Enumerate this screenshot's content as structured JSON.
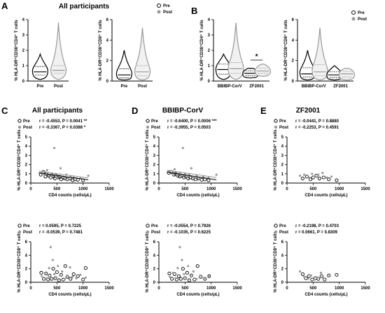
{
  "panels": {
    "A": {
      "label": "A",
      "title": "All participants"
    },
    "B": {
      "label": "B"
    },
    "C": {
      "label": "C",
      "title": "All participants"
    },
    "D": {
      "label": "D",
      "title": "BBIBP-CorV"
    },
    "E": {
      "label": "E",
      "title": "ZF2001"
    }
  },
  "legend": {
    "pre": "Pre",
    "post": "Post"
  },
  "axes": {
    "ylabel_cd4": "% HLA-DR⁺CD38⁺CD4⁺ T cells",
    "ylabel_cd8": "% HLA-DR⁺CD38⁺CD8⁺ T cells",
    "xlabel_scatter": "CD4 counts (cells/μL)"
  },
  "sig_marker": "*",
  "colors": {
    "pre": "#000000",
    "post": "#999999"
  },
  "chart_data": [
    {
      "id": "A-cd4",
      "type": "violin",
      "ylabel": "% HLA-DR⁺CD38⁺CD4⁺ T cells",
      "categories": [
        "Pre",
        "Post"
      ],
      "ylim": [
        0,
        4
      ],
      "yticks": [
        "0",
        "1",
        "2",
        "3",
        "4"
      ],
      "series": [
        {
          "name": "Pre",
          "median": 0.6,
          "q1": 0.4,
          "q3": 0.95,
          "min": 0.1,
          "max": 1.75
        },
        {
          "name": "Post",
          "median": 0.7,
          "q1": 0.5,
          "q3": 1.0,
          "min": 0.1,
          "max": 3.8
        }
      ]
    },
    {
      "id": "A-cd8",
      "type": "violin",
      "ylabel": "% HLA-DR⁺CD38⁺CD8⁺ T cells",
      "categories": [
        "Pre",
        "Post"
      ],
      "ylim": [
        0,
        6
      ],
      "yticks": [
        "0",
        "2",
        "4",
        "6"
      ],
      "series": [
        {
          "name": "Pre",
          "median": 0.6,
          "q1": 0.3,
          "q3": 1.2,
          "min": 0.1,
          "max": 3.0
        },
        {
          "name": "Post",
          "median": 0.9,
          "q1": 0.5,
          "q3": 1.5,
          "min": 0.1,
          "max": 5.2
        }
      ]
    },
    {
      "id": "B-cd4",
      "type": "violin",
      "ylabel": "% HLA-DR⁺CD38⁺CD4⁺ T cells",
      "categories": [
        "BBIBP-CorV",
        "ZF2001"
      ],
      "ylim": [
        0,
        4
      ],
      "yticks": [
        "0",
        "1",
        "2",
        "3",
        "4"
      ],
      "series": [
        {
          "name": "Pre",
          "group": "BBIBP-CorV",
          "median": 0.75,
          "q1": 0.45,
          "q3": 1.1,
          "min": 0.1,
          "max": 1.75
        },
        {
          "name": "Post",
          "group": "BBIBP-CorV",
          "median": 0.8,
          "q1": 0.5,
          "q3": 1.2,
          "min": 0.1,
          "max": 3.8
        },
        {
          "name": "Pre",
          "group": "ZF2001",
          "median": 0.5,
          "q1": 0.35,
          "q3": 0.65,
          "min": 0.2,
          "max": 0.8
        },
        {
          "name": "Post",
          "group": "ZF2001",
          "median": 0.65,
          "q1": 0.5,
          "q3": 0.85,
          "min": 0.3,
          "max": 1.1
        }
      ]
    },
    {
      "id": "B-cd8",
      "type": "violin",
      "ylabel": "% HLA-DR⁺CD38⁺CD8⁺ T cells",
      "categories": [
        "BBIBP-CorV",
        "ZF2001"
      ],
      "ylim": [
        0,
        6
      ],
      "yticks": [
        "0",
        "2",
        "4",
        "6"
      ],
      "series": [
        {
          "name": "Pre",
          "group": "BBIBP-CorV",
          "median": 0.7,
          "q1": 0.4,
          "q3": 1.3,
          "min": 0.1,
          "max": 3.0
        },
        {
          "name": "Post",
          "group": "BBIBP-CorV",
          "median": 0.9,
          "q1": 0.5,
          "q3": 1.6,
          "min": 0.1,
          "max": 5.2
        },
        {
          "name": "Pre",
          "group": "ZF2001",
          "median": 0.6,
          "q1": 0.35,
          "q3": 0.9,
          "min": 0.1,
          "max": 1.5
        },
        {
          "name": "Post",
          "group": "ZF2001",
          "median": 0.7,
          "q1": 0.4,
          "q3": 0.95,
          "min": 0.1,
          "max": 1.2
        }
      ]
    },
    {
      "id": "C-cd4",
      "type": "scatter",
      "ylabel": "% HLA-DR⁺CD38⁺CD4⁺ T cells",
      "xlabel": "CD4 counts (cells/μL)",
      "xlim": [
        0,
        1500
      ],
      "ylim": [
        0,
        5
      ],
      "xticks": [
        "0",
        "500",
        "1000",
        "1500"
      ],
      "yticks": [
        "0",
        "1",
        "2",
        "3",
        "4",
        "5"
      ],
      "stats": [
        {
          "name": "Pre",
          "text": "r = -0.4553, P = 0.0041 **"
        },
        {
          "name": "Post",
          "text": "r = -0.3367, P = 0.0388 *"
        }
      ],
      "fit_lines": [
        {
          "name": "Pre",
          "x": [
            150,
            1100
          ],
          "y": [
            1.1,
            0.35
          ]
        },
        {
          "name": "Post",
          "x": [
            150,
            1100
          ],
          "y": [
            1.3,
            0.55
          ]
        }
      ],
      "series": [
        {
          "name": "Pre",
          "x": [
            190,
            240,
            280,
            300,
            340,
            380,
            400,
            430,
            460,
            480,
            520,
            550,
            580,
            620,
            650,
            700,
            750,
            800,
            850,
            900,
            1000
          ],
          "y": [
            0.9,
            1.2,
            0.7,
            1.0,
            0.8,
            0.6,
            0.9,
            0.7,
            0.5,
            0.8,
            0.6,
            0.7,
            0.4,
            0.6,
            0.5,
            0.4,
            0.5,
            0.3,
            0.4,
            0.35,
            0.3
          ]
        },
        {
          "name": "Post",
          "x": [
            200,
            260,
            310,
            350,
            390,
            420,
            450,
            470,
            500,
            540,
            570,
            600,
            640,
            680,
            720,
            760,
            820,
            880,
            950,
            1100
          ],
          "y": [
            1.1,
            0.9,
            1.4,
            0.8,
            1.0,
            0.7,
            3.8,
            0.9,
            0.6,
            0.8,
            1.6,
            0.7,
            0.6,
            0.9,
            0.5,
            0.7,
            0.6,
            0.5,
            0.55,
            0.8
          ]
        }
      ]
    },
    {
      "id": "C-cd8",
      "type": "scatter",
      "ylabel": "% HLA-DR⁺CD38⁺CD8⁺ T cells",
      "xlabel": "CD4 counts (cells/μL)",
      "xlim": [
        0,
        1500
      ],
      "ylim": [
        0,
        6
      ],
      "xticks": [
        "0",
        "500",
        "1000",
        "1500"
      ],
      "yticks": [
        "0",
        "2",
        "4",
        "6"
      ],
      "stats": [
        {
          "name": "Pre",
          "text": "r = 0.0595, P = 0.7225"
        },
        {
          "name": "Post",
          "text": "r = -0.0539, P = 0.7481"
        }
      ],
      "series": [
        {
          "name": "Pre",
          "x": [
            200,
            250,
            290,
            330,
            360,
            400,
            430,
            470,
            500,
            540,
            580,
            620,
            660,
            700,
            760,
            820,
            900,
            1000,
            1050
          ],
          "y": [
            1.4,
            0.5,
            1.3,
            0.4,
            1.0,
            0.5,
            2.0,
            0.6,
            1.5,
            0.3,
            1.1,
            0.4,
            2.4,
            0.8,
            0.5,
            1.2,
            0.9,
            0.4,
            2.1
          ]
        },
        {
          "name": "Post",
          "x": [
            210,
            270,
            310,
            350,
            380,
            420,
            450,
            490,
            520,
            560,
            600,
            650,
            700,
            750,
            800,
            870,
            950,
            1050
          ],
          "y": [
            0.9,
            1.4,
            0.6,
            2.1,
            5.2,
            3.3,
            1.2,
            0.7,
            2.4,
            1.0,
            1.6,
            0.5,
            1.0,
            2.2,
            0.8,
            0.6,
            1.1,
            0.7
          ]
        }
      ]
    },
    {
      "id": "D-cd4",
      "type": "scatter",
      "ylabel": "% HLA-DR⁺CD38⁺CD4⁺ T cells",
      "xlabel": "CD4 counts (cells/μL)",
      "xlim": [
        0,
        1500
      ],
      "ylim": [
        0,
        5
      ],
      "xticks": [
        "0",
        "500",
        "1000",
        "1500"
      ],
      "yticks": [
        "0",
        "1",
        "2",
        "3",
        "4",
        "5"
      ],
      "stats": [
        {
          "name": "Pre",
          "text": "r = -0.6400, P = 0.0006 ***"
        },
        {
          "name": "Post",
          "text": "r = -0.3955, P = 0.0503"
        }
      ],
      "fit_lines": [
        {
          "name": "Pre",
          "x": [
            150,
            1100
          ],
          "y": [
            1.2,
            0.35
          ]
        },
        {
          "name": "Post",
          "x": [
            150,
            1100
          ],
          "y": [
            1.4,
            0.6
          ]
        }
      ],
      "series": [
        {
          "name": "Pre",
          "x": [
            190,
            240,
            290,
            320,
            360,
            400,
            440,
            480,
            520,
            560,
            600,
            650,
            700,
            760,
            820,
            880,
            950
          ],
          "y": [
            1.1,
            1.2,
            0.9,
            1.0,
            0.8,
            0.7,
            0.8,
            0.6,
            0.7,
            0.5,
            0.6,
            0.5,
            0.4,
            0.5,
            0.35,
            0.4,
            0.3
          ]
        },
        {
          "name": "Post",
          "x": [
            200,
            260,
            300,
            350,
            400,
            430,
            460,
            500,
            540,
            580,
            620,
            660,
            720,
            780,
            850,
            950,
            1100
          ],
          "y": [
            1.3,
            1.0,
            1.5,
            0.9,
            1.1,
            0.8,
            3.8,
            1.0,
            0.7,
            0.9,
            1.6,
            0.6,
            0.8,
            0.5,
            0.7,
            0.6,
            0.9
          ]
        }
      ]
    },
    {
      "id": "D-cd8",
      "type": "scatter",
      "ylabel": "% HLA-DR⁺CD38⁺CD8⁺ T cells",
      "xlabel": "CD4 counts (cells/μL)",
      "xlim": [
        0,
        1500
      ],
      "ylim": [
        0,
        6
      ],
      "xticks": [
        "0",
        "500",
        "1000",
        "1500"
      ],
      "yticks": [
        "0",
        "2",
        "4",
        "6"
      ],
      "stats": [
        {
          "name": "Pre",
          "text": "r = -0.0554, P = 0.7926"
        },
        {
          "name": "Post",
          "text": "r = -0.1035, P = 0.6225"
        }
      ],
      "series": [
        {
          "name": "Pre",
          "x": [
            200,
            250,
            300,
            340,
            380,
            420,
            460,
            500,
            540,
            580,
            620,
            680,
            740,
            800,
            880,
            960
          ],
          "y": [
            1.3,
            0.5,
            1.2,
            0.4,
            0.9,
            0.5,
            2.0,
            0.6,
            1.4,
            0.3,
            1.0,
            0.4,
            2.4,
            0.8,
            0.5,
            0.9
          ]
        },
        {
          "name": "Post",
          "x": [
            210,
            270,
            320,
            360,
            400,
            440,
            480,
            520,
            560,
            600,
            660,
            720,
            790,
            860,
            950
          ],
          "y": [
            0.8,
            1.4,
            0.6,
            2.1,
            5.2,
            3.3,
            1.2,
            0.7,
            2.4,
            1.0,
            1.6,
            0.5,
            1.0,
            0.6,
            0.9
          ]
        }
      ]
    },
    {
      "id": "E-cd4",
      "type": "scatter",
      "ylabel": "% HLA-DR⁺CD38⁺CD4⁺ T cells",
      "xlabel": "CD4 counts (cells/μL)",
      "xlim": [
        0,
        1500
      ],
      "ylim": [
        0,
        5
      ],
      "xticks": [
        "0",
        "500",
        "1000",
        "1500"
      ],
      "yticks": [
        "0",
        "1",
        "2",
        "3",
        "4",
        "5"
      ],
      "stats": [
        {
          "name": "Pre",
          "text": "r = -0.0441, P = 0.8880"
        },
        {
          "name": "Post",
          "text": "r = -0.2253, P = 0.4591"
        }
      ],
      "series": [
        {
          "name": "Pre",
          "x": [
            300,
            380,
            450,
            500,
            560,
            620,
            700,
            800,
            950
          ],
          "y": [
            0.5,
            0.7,
            0.4,
            0.6,
            0.8,
            0.5,
            0.6,
            0.4,
            0.3
          ]
        },
        {
          "name": "Post",
          "x": [
            250,
            330,
            420,
            480,
            540,
            600,
            680,
            760,
            850
          ],
          "y": [
            0.8,
            0.9,
            0.6,
            1.0,
            0.7,
            0.9,
            1.1,
            0.6,
            0.7
          ]
        }
      ]
    },
    {
      "id": "E-cd8",
      "type": "scatter",
      "ylabel": "% HLA-DR⁺CD38⁺CD8⁺ T cells",
      "xlabel": "CD4 counts (cells/μL)",
      "xlim": [
        0,
        1500
      ],
      "ylim": [
        0,
        6
      ],
      "xticks": [
        "0",
        "500",
        "1000",
        "1500"
      ],
      "yticks": [
        "0",
        "2",
        "4",
        "6"
      ],
      "stats": [
        {
          "name": "Pre",
          "text": "r = -0.2198, P = 0.4703"
        },
        {
          "name": "Post",
          "text": "r = 0.0661, P = 0.8309"
        }
      ],
      "series": [
        {
          "name": "Pre",
          "x": [
            300,
            360,
            420,
            480,
            540,
            600,
            660,
            720,
            800,
            950
          ],
          "y": [
            1.2,
            0.6,
            0.9,
            0.4,
            0.6,
            0.5,
            0.9,
            0.4,
            1.0,
            1.1
          ]
        },
        {
          "name": "Post",
          "x": [
            250,
            330,
            400,
            460,
            520,
            580,
            650,
            700,
            780
          ],
          "y": [
            1.6,
            0.8,
            0.5,
            1.0,
            0.4,
            0.7,
            1.4,
            0.6,
            0.9
          ]
        }
      ]
    }
  ]
}
